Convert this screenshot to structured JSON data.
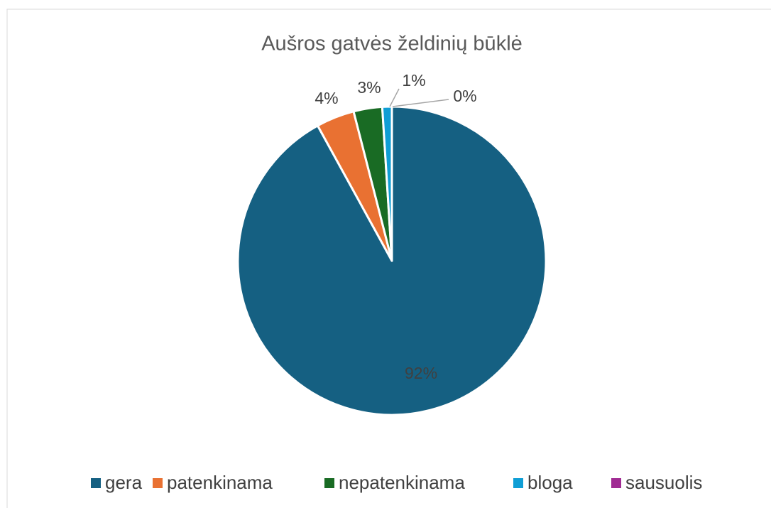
{
  "chart_data": {
    "type": "pie",
    "title": "Aušros gatvės želdinių būklė",
    "categories": [
      "gera",
      "patenkinama",
      "nepatenkinama",
      "bloga",
      "sausuolis"
    ],
    "values": [
      92,
      4,
      3,
      1,
      0
    ],
    "value_labels": [
      "92%",
      "4%",
      "3%",
      "1%",
      "0%"
    ],
    "colors": [
      "#156082",
      "#e97132",
      "#196b24",
      "#0f9ed5",
      "#a02b93"
    ],
    "legend": "bottom"
  }
}
